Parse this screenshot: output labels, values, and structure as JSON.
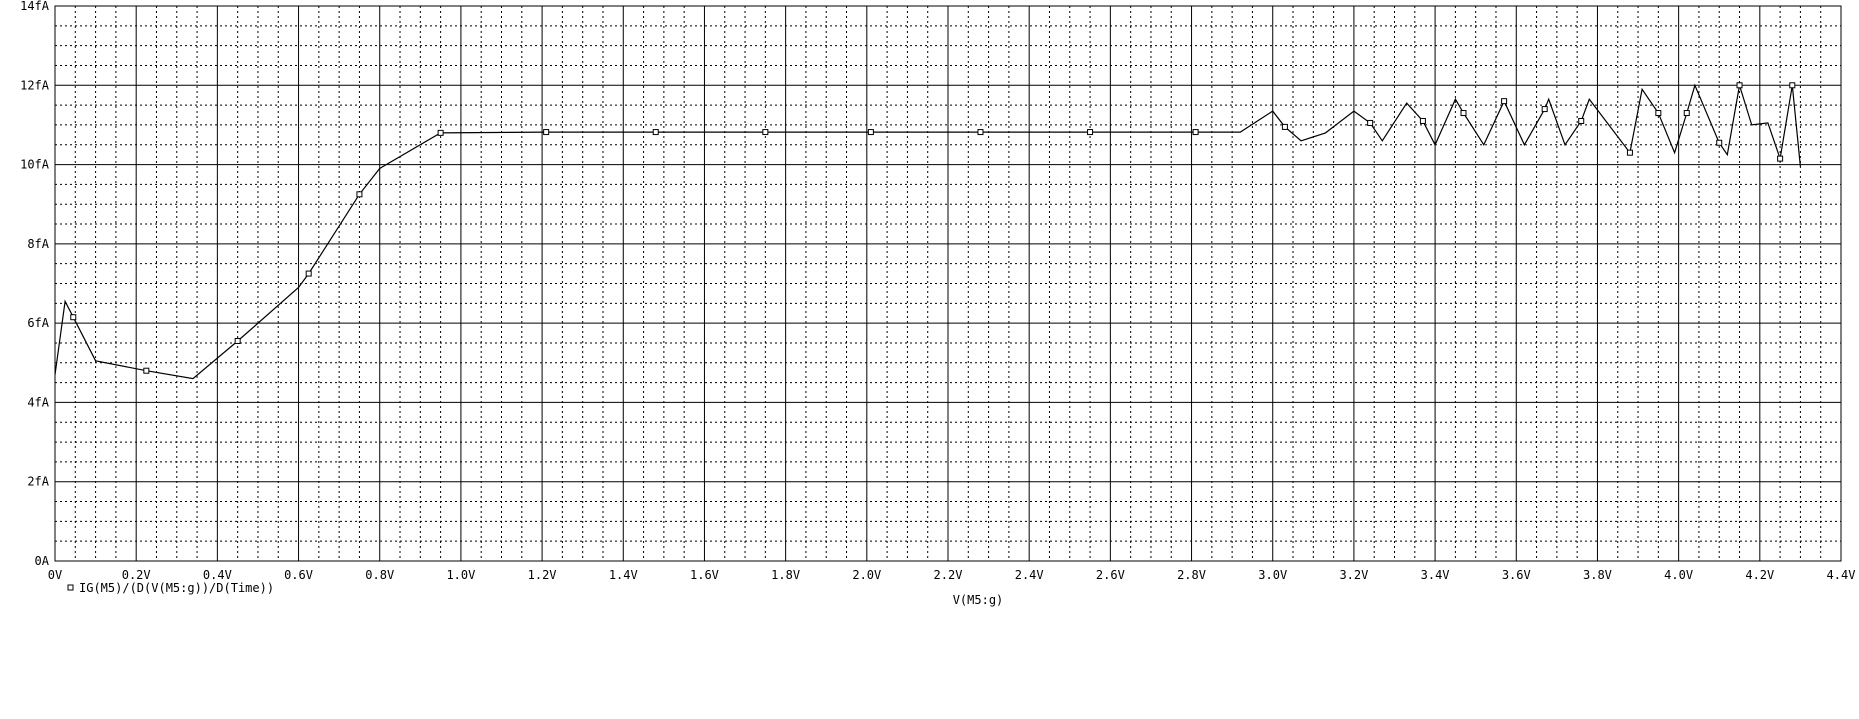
{
  "chart_data": {
    "type": "line",
    "xlabel": "V(M5:g)",
    "ylabel": "",
    "xlim": [
      0,
      4.4
    ],
    "ylim": [
      0,
      14
    ],
    "x_ticks": [
      {
        "value": 0.0,
        "label": "0V"
      },
      {
        "value": 0.2,
        "label": "0.2V"
      },
      {
        "value": 0.4,
        "label": "0.4V"
      },
      {
        "value": 0.6,
        "label": "0.6V"
      },
      {
        "value": 0.8,
        "label": "0.8V"
      },
      {
        "value": 1.0,
        "label": "1.0V"
      },
      {
        "value": 1.2,
        "label": "1.2V"
      },
      {
        "value": 1.4,
        "label": "1.4V"
      },
      {
        "value": 1.6,
        "label": "1.6V"
      },
      {
        "value": 1.8,
        "label": "1.8V"
      },
      {
        "value": 2.0,
        "label": "2.0V"
      },
      {
        "value": 2.2,
        "label": "2.2V"
      },
      {
        "value": 2.4,
        "label": "2.4V"
      },
      {
        "value": 2.6,
        "label": "2.6V"
      },
      {
        "value": 2.8,
        "label": "2.8V"
      },
      {
        "value": 3.0,
        "label": "3.0V"
      },
      {
        "value": 3.2,
        "label": "3.2V"
      },
      {
        "value": 3.4,
        "label": "3.4V"
      },
      {
        "value": 3.6,
        "label": "3.6V"
      },
      {
        "value": 3.8,
        "label": "3.8V"
      },
      {
        "value": 4.0,
        "label": "4.0V"
      },
      {
        "value": 4.2,
        "label": "4.2V"
      },
      {
        "value": 4.4,
        "label": "4.4V"
      }
    ],
    "y_ticks": [
      {
        "value": 0,
        "label": "0A"
      },
      {
        "value": 2,
        "label": "2fA"
      },
      {
        "value": 4,
        "label": "4fA"
      },
      {
        "value": 6,
        "label": "6fA"
      },
      {
        "value": 8,
        "label": "8fA"
      },
      {
        "value": 10,
        "label": "10fA"
      },
      {
        "value": 12,
        "label": "12fA"
      },
      {
        "value": 14,
        "label": "14fA"
      }
    ],
    "grid": true,
    "legend_position": "bottom-left",
    "series": [
      {
        "name": "IG(M5)/(D(V(M5:g))/D(Time))",
        "color": "#000000",
        "points": [
          [
            0.0,
            4.7
          ],
          [
            0.025,
            6.55
          ],
          [
            0.045,
            6.15
          ],
          [
            0.1,
            5.05
          ],
          [
            0.225,
            4.8
          ],
          [
            0.34,
            4.6
          ],
          [
            0.45,
            5.55
          ],
          [
            0.6,
            6.9
          ],
          [
            0.625,
            7.25
          ],
          [
            0.75,
            9.25
          ],
          [
            0.8,
            9.9
          ],
          [
            0.95,
            10.8
          ],
          [
            1.21,
            10.82
          ],
          [
            1.48,
            10.82
          ],
          [
            1.75,
            10.82
          ],
          [
            2.01,
            10.82
          ],
          [
            2.28,
            10.82
          ],
          [
            2.55,
            10.82
          ],
          [
            2.81,
            10.82
          ],
          [
            2.92,
            10.82
          ],
          [
            3.0,
            11.35
          ],
          [
            3.03,
            10.95
          ],
          [
            3.07,
            10.6
          ],
          [
            3.13,
            10.8
          ],
          [
            3.2,
            11.35
          ],
          [
            3.24,
            11.05
          ],
          [
            3.27,
            10.6
          ],
          [
            3.33,
            11.55
          ],
          [
            3.37,
            11.1
          ],
          [
            3.4,
            10.5
          ],
          [
            3.45,
            11.65
          ],
          [
            3.47,
            11.3
          ],
          [
            3.52,
            10.5
          ],
          [
            3.57,
            11.6
          ],
          [
            3.62,
            10.5
          ],
          [
            3.67,
            11.4
          ],
          [
            3.68,
            11.65
          ],
          [
            3.72,
            10.5
          ],
          [
            3.76,
            11.1
          ],
          [
            3.78,
            11.65
          ],
          [
            3.88,
            10.3
          ],
          [
            3.91,
            11.9
          ],
          [
            3.95,
            11.3
          ],
          [
            3.99,
            10.3
          ],
          [
            4.02,
            11.3
          ],
          [
            4.04,
            12.0
          ],
          [
            4.1,
            10.55
          ],
          [
            4.12,
            10.25
          ],
          [
            4.15,
            12.0
          ],
          [
            4.18,
            11.0
          ],
          [
            4.22,
            11.05
          ],
          [
            4.25,
            10.15
          ],
          [
            4.28,
            12.0
          ],
          [
            4.3,
            9.95
          ]
        ],
        "markers": [
          [
            0.045,
            6.15
          ],
          [
            0.225,
            4.8
          ],
          [
            0.45,
            5.55
          ],
          [
            0.625,
            7.25
          ],
          [
            0.75,
            9.25
          ],
          [
            0.95,
            10.8
          ],
          [
            1.21,
            10.82
          ],
          [
            1.48,
            10.82
          ],
          [
            1.75,
            10.82
          ],
          [
            2.01,
            10.82
          ],
          [
            2.28,
            10.82
          ],
          [
            2.55,
            10.82
          ],
          [
            2.81,
            10.82
          ],
          [
            3.03,
            10.95
          ],
          [
            3.24,
            11.05
          ],
          [
            3.37,
            11.1
          ],
          [
            3.47,
            11.3
          ],
          [
            3.57,
            11.6
          ],
          [
            3.67,
            11.4
          ],
          [
            3.76,
            11.1
          ],
          [
            3.88,
            10.3
          ],
          [
            3.95,
            11.3
          ],
          [
            4.02,
            11.3
          ],
          [
            4.1,
            10.55
          ],
          [
            4.15,
            12.0
          ],
          [
            4.25,
            10.15
          ],
          [
            4.28,
            12.0
          ]
        ]
      }
    ]
  }
}
